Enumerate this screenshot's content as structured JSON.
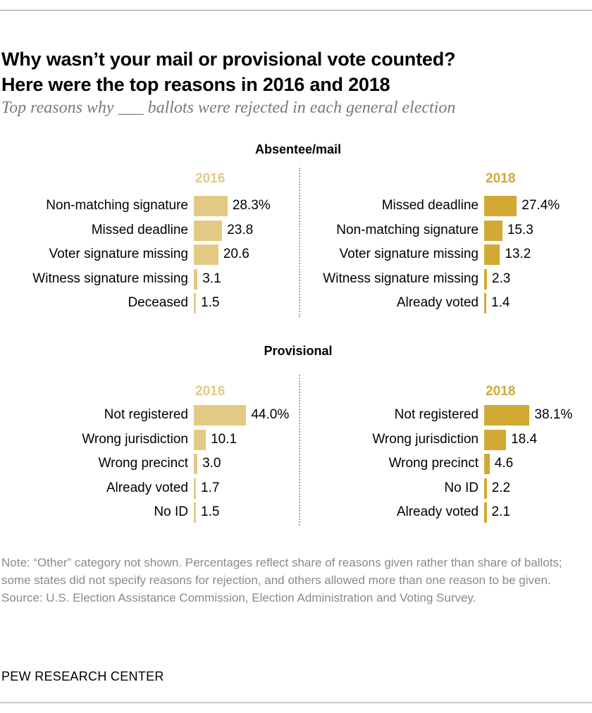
{
  "title": [
    "Why wasn’t your mail or provisional vote counted?",
    "Here were the top reasons in 2016 and 2018"
  ],
  "subtitle": "Top reasons why ___ ballots were rejected in each general election",
  "colors": {
    "2016": "#e3ca84",
    "2018": "#d2a935"
  },
  "chart_data": [
    {
      "type": "bar",
      "section": "Absentee/mail",
      "year": "2016",
      "unit": "%",
      "categories": [
        "Non-matching signature",
        "Missed deadline",
        "Voter signature missing",
        "Witness signature missing",
        "Deceased"
      ],
      "values": [
        28.3,
        23.8,
        20.6,
        3.1,
        1.5
      ],
      "labels": [
        "28.3%",
        "23.8",
        "20.6",
        "3.1",
        "1.5"
      ]
    },
    {
      "type": "bar",
      "section": "Absentee/mail",
      "year": "2018",
      "unit": "%",
      "categories": [
        "Missed deadline",
        "Non-matching signature",
        "Voter signature missing",
        "Witness signature missing",
        "Already voted"
      ],
      "values": [
        27.4,
        15.3,
        13.2,
        2.3,
        1.4
      ],
      "labels": [
        "27.4%",
        "15.3",
        "13.2",
        "2.3",
        "1.4"
      ]
    },
    {
      "type": "bar",
      "section": "Provisional",
      "year": "2016",
      "unit": "%",
      "categories": [
        "Not registered",
        "Wrong jurisdiction",
        "Wrong precinct",
        "Already voted",
        "No ID"
      ],
      "values": [
        44.0,
        10.1,
        3.0,
        1.7,
        1.5
      ],
      "labels": [
        "44.0%",
        "10.1",
        "3.0",
        "1.7",
        "1.5"
      ]
    },
    {
      "type": "bar",
      "section": "Provisional",
      "year": "2018",
      "unit": "%",
      "categories": [
        "Not registered",
        "Wrong jurisdiction",
        "Wrong precinct",
        "No ID",
        "Already voted"
      ],
      "values": [
        38.1,
        18.4,
        4.6,
        2.2,
        2.1
      ],
      "labels": [
        "38.1%",
        "18.4",
        "4.6",
        "2.2",
        "2.1"
      ]
    }
  ],
  "sections": [
    "Absentee/mail",
    "Provisional"
  ],
  "note": "Note: “Other” category not shown. Percentages reflect share of reasons given rather than share of ballots; some states did not specify reasons for rejection, and others allowed more than one reason to be given.",
  "source": "Source: U.S. Election Assistance Commission, Election Administration and Voting Survey.",
  "brand": "PEW RESEARCH CENTER"
}
